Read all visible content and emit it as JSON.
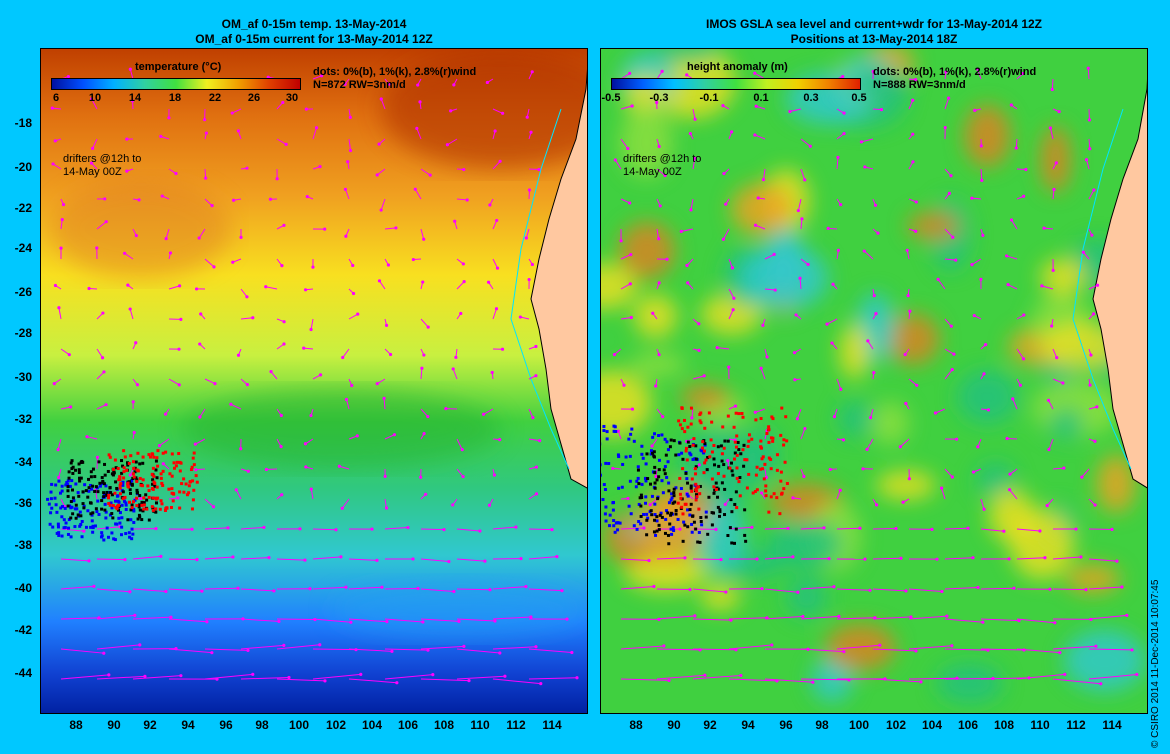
{
  "left_panel": {
    "title_line1": "OM_af 0-15m temp. 13-May-2014",
    "title_line2": "OM_af 0-15m current for 13-May-2014 12Z",
    "colorbar_title": "temperature (°C)",
    "colorbar_ticks": [
      "6",
      "10",
      "14",
      "18",
      "22",
      "26",
      "30"
    ],
    "dots_line1": "dots: 0%(b), 1%(k), 2.8%(r)wind",
    "dots_line2": "N=872 RW=3nm/d",
    "drifters_line1": "drifters @12h to",
    "drifters_line2": "14-May 00Z"
  },
  "right_panel": {
    "title_line1": "IMOS GSLA sea level and current+wdr for 13-May-2014 12Z",
    "title_line2": "Positions at 13-May-2014 18Z",
    "colorbar_title": "height anomaly (m)",
    "colorbar_ticks": [
      "-0.5",
      "-0.3",
      "-0.1",
      "0.1",
      "0.3",
      "0.5"
    ],
    "dots_line1": "dots: 0%(b), 1%(k), 2.8%(r)wind",
    "dots_line2": "N=888 RW=3nm/d",
    "drifters_line1": "drifters @12h to",
    "drifters_line2": "14-May 00Z"
  },
  "y_axis_labels": [
    "-18",
    "-20",
    "-22",
    "-24",
    "-26",
    "-28",
    "-30",
    "-32",
    "-34",
    "-36",
    "-38",
    "-40",
    "-42",
    "-44"
  ],
  "x_axis_labels": [
    "88",
    "90",
    "92",
    "94",
    "96",
    "98",
    "100",
    "102",
    "104",
    "106",
    "108",
    "110",
    "112",
    "114"
  ],
  "credit": "© CSIRO 2014  11-Dec-2014 10:07:45",
  "colors": {
    "background": "#00c8ff",
    "vector": "#ff00ff",
    "coast": "#00e5ff",
    "land": "#ffc8a0",
    "drifter_blue": "#0000ff",
    "drifter_black": "#000000",
    "drifter_red": "#ff0000"
  }
}
